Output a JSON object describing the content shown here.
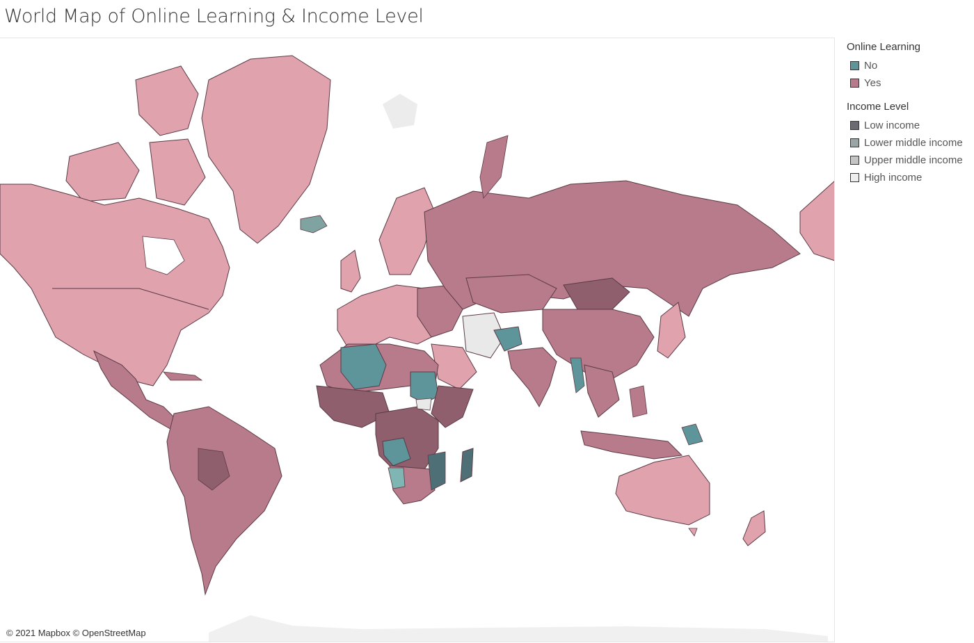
{
  "title": "World Map of Online Learning & Income Level",
  "attribution": "© 2021 Mapbox © OpenStreetMap",
  "colors": {
    "online_no": "#5d959a",
    "online_yes_high": "#e0a3ae",
    "online_yes_upper": "#c98a98",
    "online_yes_lower": "#b87b8b",
    "online_yes_low": "#8f5f6d",
    "online_no_low": "#4f6f77",
    "high_grey": "#e9e9e9"
  },
  "legend": {
    "online_learning": {
      "title": "Online Learning",
      "items": [
        {
          "label": "No",
          "color": "#5d959a"
        },
        {
          "label": "Yes",
          "color": "#b87b8b"
        }
      ]
    },
    "income_level": {
      "title": "Income Level",
      "items": [
        {
          "label": "Low income",
          "color": "#6a6a72"
        },
        {
          "label": "Lower middle income",
          "color": "#9aa5a5"
        },
        {
          "label": "Upper middle income",
          "color": "#c4c4c4"
        },
        {
          "label": "High income",
          "color": "#eeeeee"
        }
      ]
    }
  }
}
